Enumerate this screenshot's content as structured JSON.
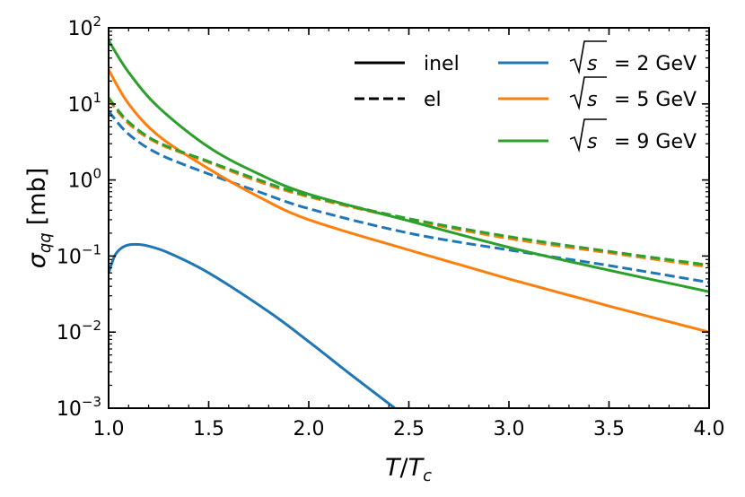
{
  "chart_data": {
    "type": "line",
    "title": "",
    "xlabel": "T/Tc",
    "ylabel": "σ_qq [mb]",
    "xlabel_parts": {
      "main": "T",
      "sep": "/",
      "sym": "T",
      "sub": "c"
    },
    "ylabel_parts": {
      "sym": "σ",
      "sub": "qq",
      "unit": "[mb]"
    },
    "x_scale": "linear",
    "y_scale": "log",
    "xlim": [
      1.0,
      4.0
    ],
    "ylim": [
      0.001,
      100
    ],
    "x_ticks": [
      1.0,
      1.5,
      2.0,
      2.5,
      3.0,
      3.5,
      4.0
    ],
    "x_tick_labels": [
      "1.0",
      "1.5",
      "2.0",
      "2.5",
      "3.0",
      "3.5",
      "4.0"
    ],
    "y_ticks": [
      0.001,
      0.01,
      0.1,
      1,
      10,
      100
    ],
    "y_tick_labels": [
      {
        "base": "10",
        "exp": "−3"
      },
      {
        "base": "10",
        "exp": "−2"
      },
      {
        "base": "10",
        "exp": "−1"
      },
      {
        "base": "10",
        "exp": "0"
      },
      {
        "base": "10",
        "exp": "1"
      },
      {
        "base": "10",
        "exp": "2"
      }
    ],
    "grid": false,
    "legend": {
      "placement": "top-right",
      "style_entries": [
        {
          "label": "inel",
          "dash": "solid"
        },
        {
          "label": "el",
          "dash": "dashed"
        }
      ],
      "energy_entries": [
        {
          "prefix": "s",
          "label": "= 2 GeV",
          "color": "#1f77b4"
        },
        {
          "prefix": "s",
          "label": "= 5 GeV",
          "color": "#ff7f0e"
        },
        {
          "prefix": "s",
          "label": "= 9 GeV",
          "color": "#2ca02c"
        }
      ]
    },
    "series": [
      {
        "name": "√s = 2 GeV inel",
        "color": "#1f77b4",
        "dash": "solid",
        "x": [
          1.0,
          1.03,
          1.06,
          1.1,
          1.15,
          1.2,
          1.3,
          1.5,
          1.8,
          2.0,
          2.2,
          2.43
        ],
        "y": [
          0.06,
          0.1,
          0.125,
          0.14,
          0.142,
          0.135,
          0.11,
          0.06,
          0.0185,
          0.0075,
          0.0029,
          0.001
        ]
      },
      {
        "name": "√s = 2 GeV el",
        "color": "#1f77b4",
        "dash": "dashed",
        "x": [
          1.0,
          1.1,
          1.25,
          1.5,
          1.75,
          2.0,
          2.5,
          3.0,
          3.5,
          4.0
        ],
        "y": [
          8.0,
          4.0,
          2.2,
          1.2,
          0.7,
          0.42,
          0.2,
          0.12,
          0.075,
          0.045
        ]
      },
      {
        "name": "√s = 5 GeV inel",
        "color": "#ff7f0e",
        "dash": "solid",
        "x": [
          1.0,
          1.1,
          1.25,
          1.5,
          1.75,
          2.0,
          2.5,
          3.0,
          3.5,
          4.0
        ],
        "y": [
          28.0,
          10.0,
          3.8,
          1.4,
          0.6,
          0.3,
          0.12,
          0.05,
          0.022,
          0.01
        ]
      },
      {
        "name": "√s = 5 GeV el",
        "color": "#ff7f0e",
        "dash": "dashed",
        "x": [
          1.0,
          1.1,
          1.25,
          1.5,
          1.75,
          2.0,
          2.5,
          3.0,
          3.5,
          4.0
        ],
        "y": [
          11.5,
          5.5,
          3.0,
          1.7,
          0.95,
          0.6,
          0.3,
          0.17,
          0.11,
          0.072
        ]
      },
      {
        "name": "√s = 9 GeV inel",
        "color": "#2ca02c",
        "dash": "solid",
        "x": [
          1.0,
          1.1,
          1.25,
          1.5,
          1.75,
          2.0,
          2.5,
          3.0,
          3.5,
          4.0
        ],
        "y": [
          68.0,
          26.0,
          9.0,
          2.7,
          1.2,
          0.65,
          0.29,
          0.13,
          0.065,
          0.034
        ]
      },
      {
        "name": "√s = 9 GeV el",
        "color": "#2ca02c",
        "dash": "dashed",
        "x": [
          1.0,
          1.1,
          1.25,
          1.5,
          1.75,
          2.0,
          2.5,
          3.0,
          3.5,
          4.0
        ],
        "y": [
          12.0,
          5.8,
          3.1,
          1.75,
          1.0,
          0.62,
          0.31,
          0.18,
          0.115,
          0.076
        ]
      }
    ]
  }
}
